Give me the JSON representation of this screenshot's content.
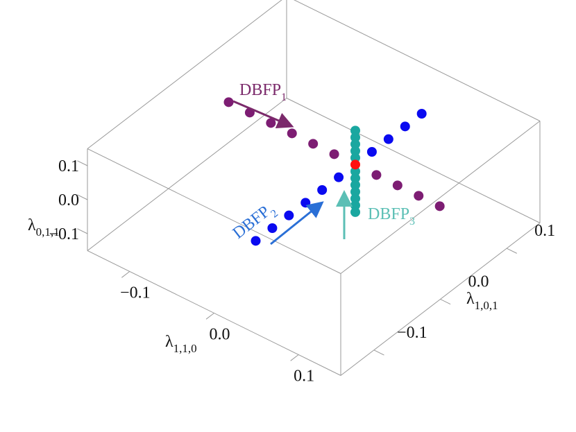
{
  "chart_data": {
    "type": "scatter3d",
    "x_label": {
      "text": "λ",
      "sub": "1,1,0"
    },
    "y_label": {
      "text": "λ",
      "sub": "1,0,1"
    },
    "z_label": {
      "text": "λ",
      "sub": "0,1,1"
    },
    "xlim": [
      -0.15,
      0.15
    ],
    "ylim": [
      -0.15,
      0.15
    ],
    "zlim": [
      -0.15,
      0.15
    ],
    "xticks": [
      {
        "value": -0.1,
        "label": "−0.1"
      },
      {
        "value": 0,
        "label": "0.0"
      },
      {
        "value": 0.1,
        "label": "0.1"
      }
    ],
    "yticks": [
      {
        "value": -0.1,
        "label": "−0.1"
      },
      {
        "value": 0,
        "label": "0.0"
      },
      {
        "value": 0.1,
        "label": "0.1"
      }
    ],
    "zticks": [
      {
        "value": -0.1,
        "label": "−0.1"
      },
      {
        "value": 0,
        "label": "0.0"
      },
      {
        "value": 0.1,
        "label": "0.1"
      }
    ],
    "series": [
      {
        "color": "#7d1d73",
        "x": [
          -0.14,
          -0.115,
          -0.09,
          -0.065,
          -0.04,
          -0.015,
          0.035,
          0.06,
          0.085,
          0.11
        ],
        "y": [
          0.05,
          0.05,
          0.05,
          0.05,
          0.05,
          0.05,
          0.05,
          0.05,
          0.05,
          0.05
        ],
        "z": [
          0,
          0,
          0,
          0,
          0,
          0,
          0,
          0,
          0,
          0
        ]
      },
      {
        "color": "#0a0af0",
        "x": [
          0.01,
          0.01,
          0.01,
          0.01,
          0.01,
          0.01,
          0.01,
          0.01,
          0.01,
          0.01
        ],
        "y": [
          -0.1,
          -0.075,
          -0.05,
          -0.025,
          0,
          0.025,
          0.075,
          0.1,
          0.125,
          0.15
        ],
        "z": [
          0,
          0,
          0,
          0,
          0,
          0,
          0,
          0,
          0,
          0
        ]
      },
      {
        "color": "#1aa7a0",
        "x": [
          0.01,
          0.01,
          0.01,
          0.01,
          0.01,
          0.01,
          0.01,
          0.01,
          0.01,
          0.01,
          0.01,
          0.01
        ],
        "y": [
          0.05,
          0.05,
          0.05,
          0.05,
          0.05,
          0.05,
          0.05,
          0.05,
          0.05,
          0.05,
          0.05,
          0.05
        ],
        "z": [
          0.1,
          0.08,
          0.06,
          0.04,
          0.02,
          -0.02,
          -0.04,
          -0.06,
          -0.08,
          -0.1,
          -0.12,
          -0.14
        ]
      },
      {
        "color": "#ff1010",
        "x": [
          0.01
        ],
        "y": [
          0.05
        ],
        "z": [
          0
        ]
      }
    ],
    "annotations": [
      {
        "text": "DBFP",
        "sub": "1"
      },
      {
        "text": "DBFP",
        "sub": "2"
      },
      {
        "text": "DBFP",
        "sub": "3"
      }
    ]
  }
}
